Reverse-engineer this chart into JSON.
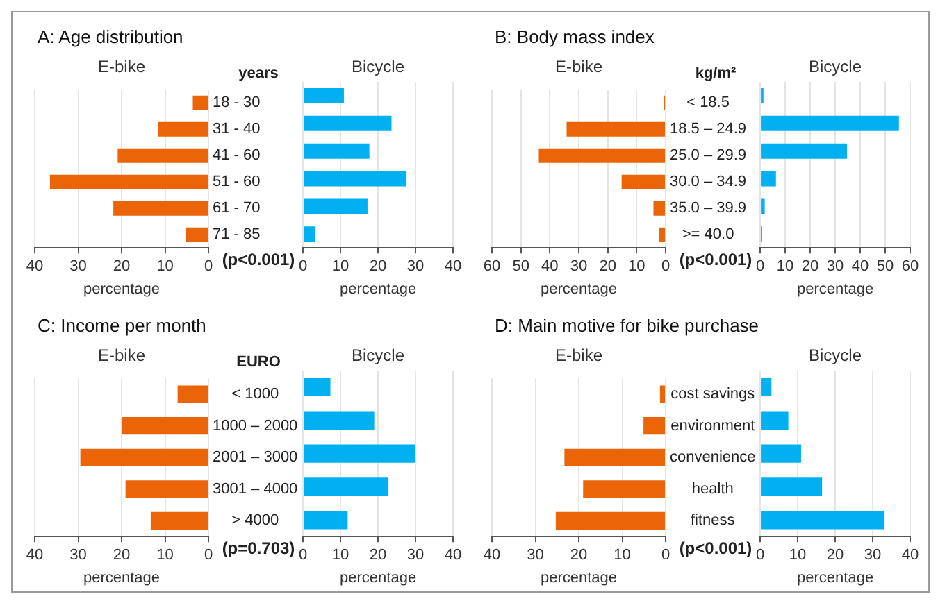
{
  "chart_data": [
    {
      "type": "bar",
      "orientation": "horizontal",
      "title": "A: Age distribution",
      "subtitle": "E-bike",
      "ylabel": "years",
      "xlabel": "percentage",
      "categories": [
        "18 - 30",
        "31 - 40",
        "41 - 60",
        "51 - 60",
        "61 - 70",
        "71 - 85"
      ],
      "values": [
        3.6,
        11.6,
        20.9,
        36.5,
        21.9,
        5.2
      ],
      "color": "#eb6407",
      "xlim": [
        40,
        0
      ],
      "xticks": [
        40,
        30,
        20,
        10,
        0
      ],
      "grid": "x",
      "annotations": [
        "(p<0.001)"
      ]
    },
    {
      "type": "bar",
      "orientation": "horizontal",
      "subtitle": "Bicycle",
      "xlabel": "percentage",
      "categories": [
        null,
        null,
        null,
        null,
        null,
        null
      ],
      "values": [
        10.9,
        23.6,
        17.7,
        27.6,
        17.2,
        3.2
      ],
      "color": "#00b0f0",
      "xlim": [
        0,
        40
      ],
      "xticks": [
        0,
        10,
        20,
        30,
        40
      ],
      "grid": "x",
      "tick_labels": "x"
    },
    {
      "type": "bar",
      "orientation": "horizontal",
      "title": "B: Body mass index",
      "subtitle": "E-bike",
      "ylabel": "kg/m²",
      "xlabel": "percentage",
      "categories": [
        "< 18.5",
        "18.5 – 24.9",
        "25.0 – 29.9",
        "30.0 – 34.9",
        "35.0 – 39.9",
        ">= 40.0"
      ],
      "values": [
        0.5,
        34.2,
        43.8,
        15.2,
        4.2,
        2.2
      ],
      "color": "#eb6407",
      "xlim": [
        60,
        0
      ],
      "xticks": [
        60,
        50,
        40,
        30,
        20,
        10,
        0
      ],
      "grid": "x",
      "annotations": [
        "(p<0.001)"
      ]
    },
    {
      "type": "bar",
      "orientation": "horizontal",
      "subtitle": "Bicycle",
      "xlabel": "percentage",
      "categories": [
        null,
        null,
        null,
        null,
        null,
        null
      ],
      "values": [
        1.3,
        55.5,
        34.7,
        6.3,
        1.8,
        0.7
      ],
      "color": "#00b0f0",
      "xlim": [
        0,
        60
      ],
      "xticks": [
        0,
        10,
        20,
        30,
        40,
        50,
        60
      ],
      "grid": "x",
      "tick_labels": "x"
    },
    {
      "type": "bar",
      "orientation": "horizontal",
      "title": "C: Income per month",
      "subtitle": "E-bike",
      "ylabel": "EURO",
      "xlabel": "percentage",
      "categories": [
        "< 1000",
        "1000 – 2000",
        "2001 – 3000",
        "3001 – 4000",
        "> 4000"
      ],
      "values": [
        7.1,
        19.9,
        29.5,
        19.1,
        13.3
      ],
      "color": "#eb6407",
      "xlim": [
        40,
        0
      ],
      "xticks": [
        40,
        30,
        20,
        10,
        0
      ],
      "grid": "x",
      "annotations": [
        "(p=0.703)"
      ]
    },
    {
      "type": "bar",
      "orientation": "horizontal",
      "subtitle": "Bicycle",
      "xlabel": "percentage",
      "categories": [
        null,
        null,
        null,
        null,
        null
      ],
      "values": [
        7.3,
        19.0,
        29.9,
        22.7,
        11.9
      ],
      "color": "#00b0f0",
      "xlim": [
        0,
        40
      ],
      "xticks": [
        0,
        10,
        20,
        30,
        40
      ],
      "grid": "x",
      "tick_labels": "x"
    },
    {
      "type": "bar",
      "orientation": "horizontal",
      "title": "D: Main motive for bike purchase",
      "subtitle": "E-bike",
      "xlabel": "percentage",
      "categories": [
        "cost savings",
        "environment",
        "convenience",
        "health",
        "fitness"
      ],
      "values": [
        1.3,
        5.1,
        23.3,
        19.0,
        25.3
      ],
      "color": "#eb6407",
      "xlim": [
        40,
        0
      ],
      "xticks": [
        40,
        30,
        20,
        10,
        0
      ],
      "grid": "x",
      "annotations": [
        "(p<0.001)"
      ]
    },
    {
      "type": "bar",
      "orientation": "horizontal",
      "subtitle": "Bicycle",
      "xlabel": "percentage",
      "categories": [
        null,
        null,
        null,
        null,
        null
      ],
      "values": [
        3.0,
        7.5,
        10.9,
        16.5,
        33.0
      ],
      "color": "#00b0f0",
      "xlim": [
        0,
        40
      ],
      "xticks": [
        0,
        10,
        20,
        30,
        40
      ],
      "grid": "x",
      "tick_labels": "x"
    }
  ]
}
